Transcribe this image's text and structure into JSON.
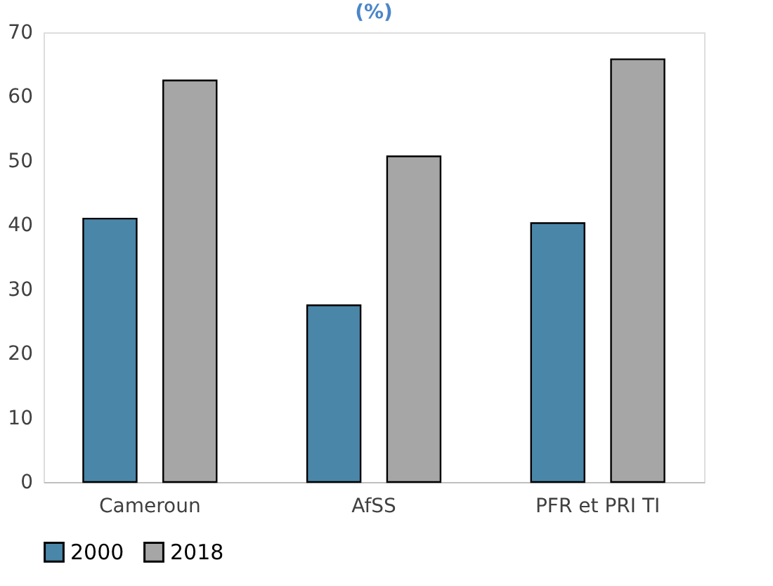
{
  "chart_data": {
    "type": "bar",
    "title": "(%)",
    "categories": [
      "Cameroun",
      "AfSS",
      "PFR et PRI TI"
    ],
    "series": [
      {
        "name": "2000",
        "color": "#4a86a8",
        "values": [
          41,
          27.5,
          40.3
        ]
      },
      {
        "name": "2018",
        "color": "#a6a6a6",
        "values": [
          62.5,
          50.7,
          65.8
        ]
      }
    ],
    "ylim": [
      0,
      70
    ],
    "yticks": [
      0,
      10,
      20,
      30,
      40,
      50,
      60,
      70
    ],
    "grid": false,
    "legend": "bottom"
  }
}
